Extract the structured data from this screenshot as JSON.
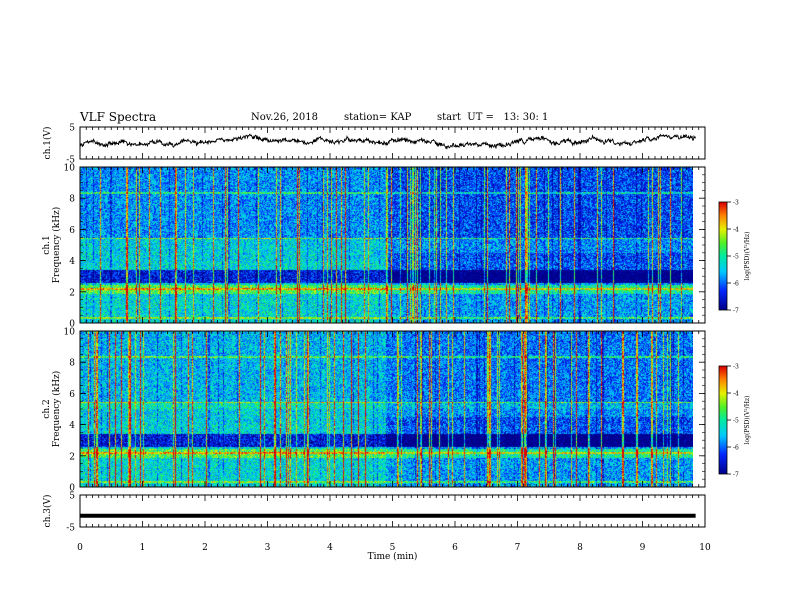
{
  "header": {
    "title": "VLF Spectra",
    "date": "Nov.26, 2018",
    "station": "station= KAP",
    "start": "start  UT =   13: 30: 1"
  },
  "chart_data": [
    {
      "type": "line",
      "name": "ch1-waveform",
      "ylabel": "ch.1(V)",
      "ylim": [
        -5,
        5
      ],
      "yticks": [
        "5",
        "-5"
      ],
      "xlim": [
        0,
        10
      ],
      "x_range_data": [
        0,
        9.85
      ],
      "style": "noisy waveform centred slightly above zero, amplitude about ±1.5 V"
    },
    {
      "type": "heatmap",
      "name": "ch1-spectrogram",
      "ylabel": "Frequency (kHz)",
      "channel_label": "ch.1",
      "ylim": [
        0,
        10
      ],
      "yticks": [
        "0",
        "2",
        "4",
        "6",
        "8",
        "10"
      ],
      "xlim": [
        0,
        10
      ],
      "x_range_data": [
        0,
        9.85
      ],
      "colorbar": {
        "label": "log(PSD)(V²/Hz)",
        "range": [
          -7,
          -3
        ],
        "ticks": [
          "-3",
          "-4",
          "-5",
          "-6",
          "-7"
        ],
        "colormap": "blue-cyan-green-yellow-red"
      },
      "regime_change_time_min": 4.9
    },
    {
      "type": "heatmap",
      "name": "ch2-spectrogram",
      "ylabel": "Frequency (kHz)",
      "channel_label": "ch.2",
      "ylim": [
        0,
        10
      ],
      "yticks": [
        "0",
        "2",
        "4",
        "6",
        "8",
        "10"
      ],
      "xlim": [
        0,
        10
      ],
      "x_range_data": [
        0,
        9.85
      ],
      "colorbar": {
        "label": "log(PSD)(V²/Hz)",
        "range": [
          -7,
          -3
        ],
        "ticks": [
          "-3",
          "-4",
          "-5",
          "-6",
          "-7"
        ],
        "colormap": "blue-cyan-green-yellow-red"
      },
      "regime_change_time_min": 4.9
    },
    {
      "type": "line",
      "name": "ch3-waveform",
      "ylabel": "ch.3(V)",
      "ylim": [
        -5,
        5
      ],
      "yticks": [
        "5",
        "-5"
      ],
      "xlim": [
        0,
        10
      ],
      "x_range_data": [
        0,
        9.85
      ],
      "constant_value": -1.5,
      "xlabel": "Time  (min)",
      "xticks": [
        "0",
        "1",
        "2",
        "3",
        "4",
        "5",
        "6",
        "7",
        "8",
        "9",
        "10"
      ]
    }
  ]
}
